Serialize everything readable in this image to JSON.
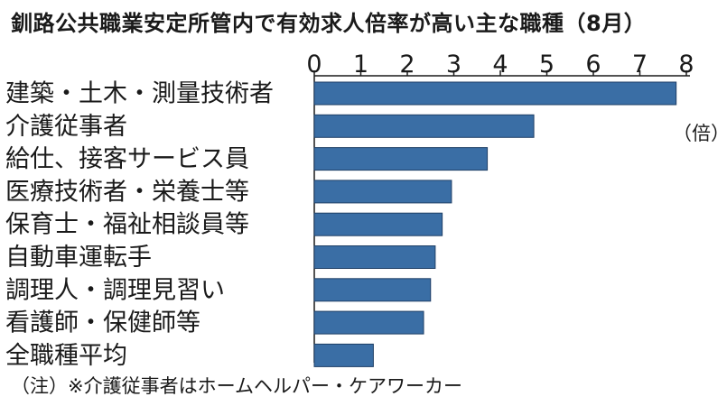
{
  "title": "釧路公共職業安定所管内で有効求人倍率が高い主な職種（8月）",
  "unit_label": "（倍）",
  "note": "（注）※介護従事者はホームヘルパー・ケアワーカー",
  "colors": {
    "bar": "#3a6ea5",
    "bar_edge": "#1f3f66",
    "axis": "#1a1a1a"
  },
  "chart_data": {
    "type": "bar",
    "orientation": "horizontal",
    "title": "釧路公共職業安定所管内で有効求人倍率が高い主な職種（8月）",
    "xlabel": "",
    "ylabel": "",
    "unit": "（倍）",
    "xlim": [
      0,
      8
    ],
    "ticks": [
      "0",
      "1",
      "2",
      "3",
      "4",
      "5",
      "6",
      "7",
      "8"
    ],
    "categories": [
      "建築・土木・測量技術者",
      "介護従事者",
      "給仕、接客サービス員",
      "医療技術者・栄養士等",
      "保育士・福祉相談員等",
      "自動車運転手",
      "調理人・調理見習い",
      "看護師・保健師等",
      "全職種平均"
    ],
    "values": [
      7.78,
      4.72,
      3.72,
      2.95,
      2.75,
      2.6,
      2.5,
      2.35,
      1.27
    ],
    "grid": false,
    "legend": "none"
  }
}
